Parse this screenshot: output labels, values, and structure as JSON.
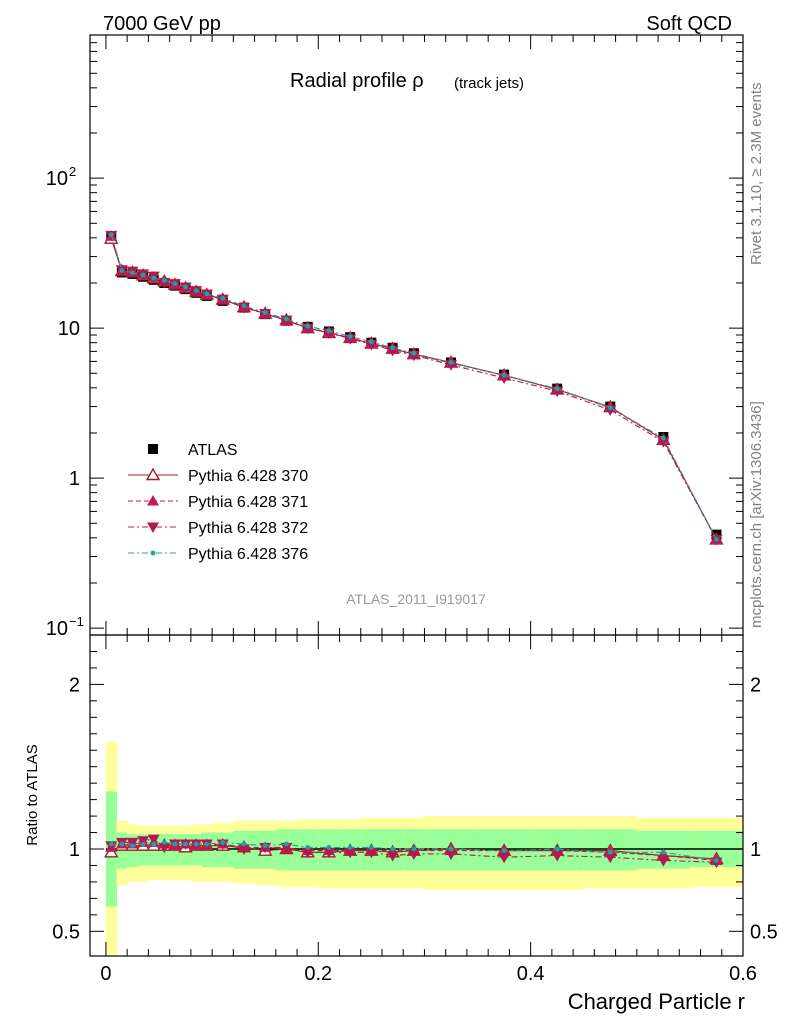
{
  "header": {
    "left": "7000 GeV pp",
    "right": "Soft QCD",
    "side_top": "Rivet 3.1.10, ≥ 2.3M events",
    "side_bottom": "mcplots.cern.ch [arXiv:1306.3436]"
  },
  "colors": {
    "atlas": "#000000",
    "p370": "#a01e1e",
    "p371": "#c01a5a",
    "p372": "#b01a50",
    "p376": "#20a0a0",
    "band_inner": "#99ff99",
    "band_outer": "#ffff99"
  },
  "chart_data": [
    {
      "type": "line",
      "title": "Radial profile ρ",
      "title_suffix": "(track jets)",
      "watermark": "ATLAS_2011_I919017",
      "yscale": "log",
      "ylim": [
        0.09,
        900
      ],
      "xlim": [
        -0.015,
        0.6
      ],
      "y_ticks": [
        {
          "v": 0.1,
          "base": "10",
          "exp": "−1"
        },
        {
          "v": 1,
          "base": "1",
          "exp": ""
        },
        {
          "v": 10,
          "base": "10",
          "exp": ""
        },
        {
          "v": 100,
          "base": "10",
          "exp": "2"
        }
      ],
      "x": [
        0.005,
        0.015,
        0.025,
        0.035,
        0.045,
        0.055,
        0.065,
        0.075,
        0.085,
        0.095,
        0.11,
        0.13,
        0.15,
        0.17,
        0.19,
        0.21,
        0.23,
        0.25,
        0.27,
        0.29,
        0.325,
        0.375,
        0.425,
        0.475,
        0.525,
        0.575
      ],
      "series": [
        {
          "name": "ATLAS",
          "key": "atlas",
          "marker": "square",
          "dash": "",
          "values": [
            40.5,
            23.5,
            23.0,
            22.0,
            21.0,
            20.0,
            19.2,
            18.2,
            17.2,
            16.4,
            15.2,
            13.7,
            12.4,
            11.2,
            10.2,
            9.5,
            8.7,
            8.0,
            7.4,
            6.8,
            5.9,
            4.9,
            3.95,
            3.0,
            1.88,
            0.42
          ]
        },
        {
          "name": "Pythia 6.428 370",
          "key": "p370",
          "marker": "tri-up-open",
          "dash": "",
          "values": [
            39.5,
            24.0,
            23.5,
            22.5,
            21.5,
            20.5,
            19.5,
            18.5,
            17.5,
            16.7,
            15.5,
            13.8,
            12.5,
            11.3,
            10.0,
            9.3,
            8.6,
            7.9,
            7.3,
            6.7,
            5.9,
            4.85,
            3.9,
            2.98,
            1.8,
            0.39
          ]
        },
        {
          "name": "Pythia 6.428 371",
          "key": "p371",
          "marker": "tri-up",
          "dash": "5,3",
          "values": [
            41.0,
            24.2,
            23.6,
            22.8,
            21.8,
            20.6,
            19.6,
            18.7,
            17.6,
            16.8,
            15.6,
            13.9,
            12.5,
            11.2,
            10.0,
            9.4,
            8.6,
            7.9,
            7.3,
            6.7,
            5.85,
            4.85,
            3.9,
            2.95,
            1.8,
            0.39
          ]
        },
        {
          "name": "Pythia 6.428 372",
          "key": "p372",
          "marker": "tri-down",
          "dash": "6,3,2,3",
          "values": [
            41.5,
            24.5,
            24.0,
            23.0,
            22.2,
            20.2,
            19.8,
            18.8,
            17.8,
            16.9,
            15.6,
            13.7,
            12.5,
            11.3,
            10.0,
            9.3,
            8.5,
            7.8,
            7.1,
            6.6,
            5.7,
            4.65,
            3.8,
            2.85,
            1.75,
            0.39
          ]
        },
        {
          "name": "Pythia 6.428 376",
          "key": "p376",
          "marker": "dot",
          "dash": "6,3,2,3",
          "values": [
            42.0,
            24.2,
            23.4,
            22.6,
            21.6,
            20.8,
            19.8,
            18.8,
            17.8,
            16.9,
            15.8,
            14.1,
            12.7,
            11.5,
            10.3,
            9.6,
            8.8,
            8.1,
            7.4,
            6.8,
            5.9,
            4.85,
            3.95,
            2.95,
            1.85,
            0.39
          ]
        }
      ],
      "legend_position": "middle-left"
    },
    {
      "type": "line",
      "ylabel": "Ratio to ATLAS",
      "xlabel": "Charged Particle r",
      "ylim": [
        0.35,
        2.3
      ],
      "xlim": [
        -0.015,
        0.6
      ],
      "reference": 1,
      "y_ticks": [
        "0.5",
        "1",
        "2"
      ],
      "x_ticks": [
        "0",
        "0.2",
        "0.4",
        "0.6"
      ],
      "x_edges": [
        0.0,
        0.01,
        0.02,
        0.03,
        0.04,
        0.05,
        0.06,
        0.07,
        0.08,
        0.09,
        0.1,
        0.12,
        0.14,
        0.16,
        0.18,
        0.2,
        0.22,
        0.24,
        0.26,
        0.28,
        0.3,
        0.35,
        0.4,
        0.45,
        0.5,
        0.55,
        0.6
      ],
      "band_inner": {
        "lo": [
          0.65,
          0.88,
          0.89,
          0.9,
          0.9,
          0.9,
          0.9,
          0.9,
          0.9,
          0.89,
          0.89,
          0.88,
          0.88,
          0.87,
          0.87,
          0.87,
          0.87,
          0.87,
          0.87,
          0.87,
          0.87,
          0.87,
          0.87,
          0.87,
          0.88,
          0.89
        ],
        "hi": [
          1.35,
          1.1,
          1.09,
          1.09,
          1.09,
          1.09,
          1.09,
          1.09,
          1.09,
          1.1,
          1.1,
          1.11,
          1.11,
          1.12,
          1.12,
          1.12,
          1.12,
          1.12,
          1.12,
          1.12,
          1.12,
          1.12,
          1.12,
          1.12,
          1.11,
          1.11
        ]
      },
      "band_outer": {
        "lo": [
          0.35,
          0.78,
          0.8,
          0.8,
          0.81,
          0.81,
          0.81,
          0.81,
          0.8,
          0.8,
          0.8,
          0.79,
          0.78,
          0.77,
          0.77,
          0.76,
          0.76,
          0.76,
          0.76,
          0.76,
          0.75,
          0.75,
          0.75,
          0.76,
          0.76,
          0.77
        ],
        "hi": [
          1.65,
          1.17,
          1.15,
          1.14,
          1.14,
          1.14,
          1.14,
          1.14,
          1.15,
          1.15,
          1.16,
          1.17,
          1.17,
          1.17,
          1.18,
          1.18,
          1.18,
          1.19,
          1.19,
          1.19,
          1.2,
          1.2,
          1.2,
          1.2,
          1.19,
          1.19
        ]
      },
      "series": [
        {
          "name": "Pythia 6.428 370",
          "key": "p370",
          "marker": "tri-up-open",
          "dash": "",
          "values": [
            0.98,
            1.02,
            1.02,
            1.02,
            1.02,
            1.02,
            1.02,
            1.01,
            1.02,
            1.02,
            1.02,
            1.01,
            0.99,
            1.0,
            0.98,
            0.98,
            0.99,
            0.99,
            0.98,
            0.99,
            1.0,
            0.99,
            0.99,
            0.99,
            0.96,
            0.94
          ]
        },
        {
          "name": "Pythia 6.428 371",
          "key": "p371",
          "marker": "tri-up",
          "dash": "5,3",
          "values": [
            1.01,
            1.03,
            1.03,
            1.04,
            1.04,
            1.03,
            1.02,
            1.03,
            1.02,
            1.02,
            1.03,
            1.01,
            1.01,
            1.0,
            0.99,
            0.99,
            0.99,
            0.99,
            0.99,
            0.99,
            0.99,
            0.99,
            0.99,
            0.98,
            0.96,
            0.93
          ]
        },
        {
          "name": "Pythia 6.428 372",
          "key": "p372",
          "marker": "tri-down",
          "dash": "6,3,2,3",
          "values": [
            1.02,
            1.04,
            1.04,
            1.05,
            1.06,
            1.01,
            1.03,
            1.03,
            1.03,
            1.03,
            1.03,
            1.0,
            1.01,
            1.01,
            0.98,
            0.98,
            0.98,
            0.98,
            0.96,
            0.97,
            0.97,
            0.95,
            0.96,
            0.95,
            0.93,
            0.92
          ]
        },
        {
          "name": "Pythia 6.428 376",
          "key": "p376",
          "marker": "dot",
          "dash": "6,3,2,3",
          "values": [
            1.03,
            1.03,
            1.02,
            1.03,
            1.03,
            1.04,
            1.03,
            1.03,
            1.03,
            1.03,
            1.04,
            1.03,
            1.02,
            1.03,
            1.01,
            1.01,
            1.01,
            1.01,
            1.0,
            1.0,
            1.0,
            0.99,
            1.0,
            0.98,
            0.98,
            0.93
          ]
        }
      ]
    }
  ]
}
